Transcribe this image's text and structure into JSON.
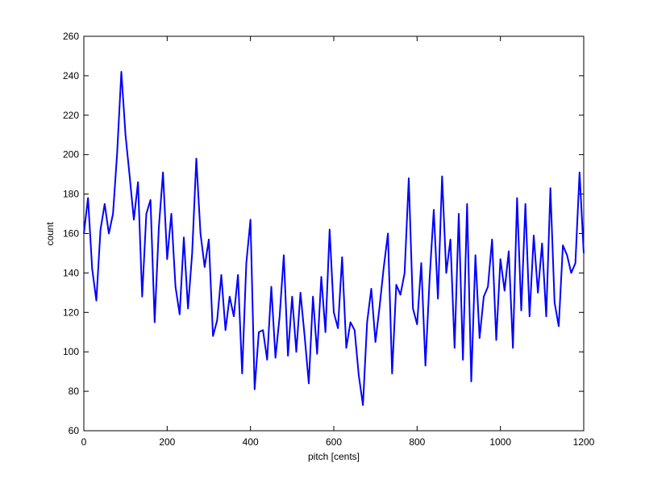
{
  "chart_data": {
    "type": "line",
    "xlabel": "pitch [cents]",
    "ylabel": "count",
    "x": [
      0,
      10,
      20,
      30,
      40,
      50,
      60,
      70,
      80,
      90,
      100,
      110,
      120,
      130,
      140,
      150,
      160,
      170,
      180,
      190,
      200,
      210,
      220,
      230,
      240,
      250,
      260,
      270,
      280,
      290,
      300,
      310,
      320,
      330,
      340,
      350,
      360,
      370,
      380,
      390,
      400,
      410,
      420,
      430,
      440,
      450,
      460,
      470,
      480,
      490,
      500,
      510,
      520,
      530,
      540,
      550,
      560,
      570,
      580,
      590,
      600,
      610,
      620,
      630,
      640,
      650,
      660,
      670,
      680,
      690,
      700,
      710,
      720,
      730,
      740,
      750,
      760,
      770,
      780,
      790,
      800,
      810,
      820,
      830,
      840,
      850,
      860,
      870,
      880,
      890,
      900,
      910,
      920,
      930,
      940,
      950,
      960,
      970,
      980,
      990,
      1000,
      1010,
      1020,
      1030,
      1040,
      1050,
      1060,
      1070,
      1080,
      1090,
      1100,
      1110,
      1120,
      1130,
      1140,
      1150,
      1160,
      1170,
      1180,
      1190,
      1200
    ],
    "series": [
      {
        "color": "#0000ff",
        "values": [
          160,
          178,
          142,
          126,
          162,
          175,
          160,
          170,
          201,
          242,
          210,
          189,
          167,
          186,
          128,
          170,
          177,
          115,
          163,
          191,
          147,
          170,
          133,
          119,
          158,
          122,
          150,
          198,
          160,
          143,
          157,
          108,
          116,
          139,
          111,
          128,
          118,
          139,
          89,
          145,
          167,
          81,
          110,
          111,
          96,
          133,
          97,
          118,
          149,
          98,
          128,
          100,
          130,
          108,
          84,
          128,
          99,
          138,
          110,
          162,
          120,
          112,
          148,
          102,
          115,
          111,
          88,
          73,
          115,
          132,
          105,
          123,
          143,
          160,
          89,
          134,
          129,
          140,
          188,
          122,
          114,
          145,
          93,
          137,
          172,
          127,
          189,
          140,
          157,
          102,
          170,
          96,
          175,
          85,
          149,
          107,
          128,
          133,
          157,
          106,
          147,
          131,
          151,
          102,
          178,
          121,
          175,
          118,
          159,
          130,
          155,
          118,
          183,
          125,
          113,
          154,
          149,
          140,
          145,
          191,
          150
        ]
      }
    ],
    "xlim": [
      0,
      1200
    ],
    "xticks": [
      0,
      200,
      400,
      600,
      800,
      1000,
      1200
    ],
    "ylim": [
      60,
      260
    ],
    "yticks": [
      60,
      80,
      100,
      120,
      140,
      160,
      180,
      200,
      220,
      240,
      260
    ],
    "grid": false
  }
}
